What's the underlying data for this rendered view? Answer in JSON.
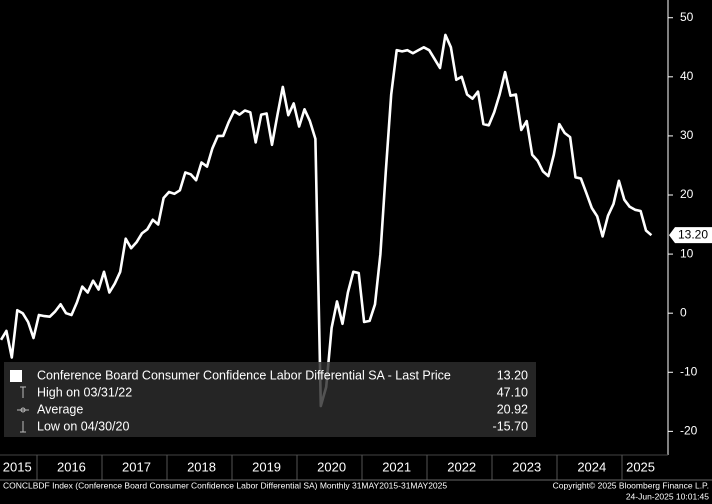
{
  "chart_data": {
    "type": "line",
    "categories": [
      null,
      null,
      null,
      "2015",
      null,
      null,
      null,
      null,
      null,
      null,
      null,
      null,
      null,
      "2016",
      null,
      null,
      null,
      null,
      null,
      null,
      null,
      null,
      null,
      null,
      null,
      "2017",
      null,
      null,
      null,
      null,
      null,
      null,
      null,
      null,
      null,
      null,
      null,
      "2018",
      null,
      null,
      null,
      null,
      null,
      null,
      null,
      null,
      null,
      null,
      null,
      "2019",
      null,
      null,
      null,
      null,
      null,
      null,
      null,
      null,
      null,
      null,
      null,
      "2020",
      null,
      null,
      null,
      null,
      null,
      null,
      null,
      null,
      null,
      null,
      null,
      "2021",
      null,
      null,
      null,
      null,
      null,
      null,
      null,
      null,
      null,
      null,
      null,
      "2022",
      null,
      null,
      null,
      null,
      null,
      null,
      null,
      null,
      null,
      null,
      null,
      "2023",
      null,
      null,
      null,
      null,
      null,
      null,
      null,
      null,
      null,
      null,
      null,
      "2024",
      null,
      null,
      null,
      null,
      null,
      null,
      null,
      null,
      "2025",
      null,
      null
    ],
    "series": [
      {
        "name": "Conference Board Consumer Confidence Labor Differential SA - Last Price",
        "color": "#ffffff",
        "values": [
          -4.5,
          -3,
          -7.5,
          0.5,
          0,
          -1.5,
          -4.2,
          -0.3,
          -0.5,
          -0.6,
          0.3,
          1.5,
          0,
          -0.3,
          1.8,
          4.5,
          3.5,
          5.5,
          4,
          7,
          3.5,
          5,
          7,
          12.6,
          11,
          12,
          13.5,
          14.2,
          15.8,
          15,
          19.5,
          20.5,
          20.2,
          20.8,
          23.8,
          23.5,
          22.5,
          25.5,
          24.8,
          27.9,
          30,
          30,
          32.3,
          34.2,
          33.6,
          34.3,
          34,
          28.9,
          33.6,
          33.8,
          28.5,
          33.5,
          38.3,
          33.5,
          35.5,
          31.6,
          34.5,
          32.5,
          29.5,
          -15.7,
          -12.5,
          -2.5,
          2,
          -1.8,
          3.5,
          7,
          6.8,
          -1.5,
          -1.3,
          1.5,
          10,
          24,
          37,
          44.5,
          44.3,
          44.5,
          44,
          44.5,
          45,
          44.5,
          43,
          41.5,
          47.1,
          45,
          39.5,
          40,
          37,
          36.3,
          37.5,
          32,
          31.8,
          34,
          37,
          40.8,
          36.8,
          37,
          31,
          32.5,
          26.8,
          25.8,
          24,
          23.2,
          26.8,
          32,
          30.5,
          29.8,
          23,
          22.8,
          20.3,
          17.8,
          16.4,
          13,
          16.5,
          18.5,
          22.4,
          19.2,
          18,
          17.5,
          17.3,
          14,
          13.2
        ]
      }
    ],
    "last_label": "13.20",
    "ylim": [
      -24,
      53
    ],
    "yticks": [
      -20,
      -10,
      0,
      10,
      20,
      30,
      40,
      50
    ],
    "legend": [
      {
        "label": "Conference Board Consumer Confidence Labor Differential SA - Last Price",
        "value": "13.20"
      },
      {
        "label": "High on 03/31/22",
        "value": "47.10"
      },
      {
        "label": "Average",
        "value": "20.92"
      },
      {
        "label": "Low on 04/30/20",
        "value": "-15.70"
      }
    ],
    "footer_left": "CONCLBDF Index (Conference Board Consumer Confidence Labor Differential SA)  Monthly 31MAY2015-31MAY2025",
    "footer_right": "Copyright© 2025 Bloomberg Finance L.P.",
    "footer_date": "24-Jun-2025 10:01:45"
  }
}
